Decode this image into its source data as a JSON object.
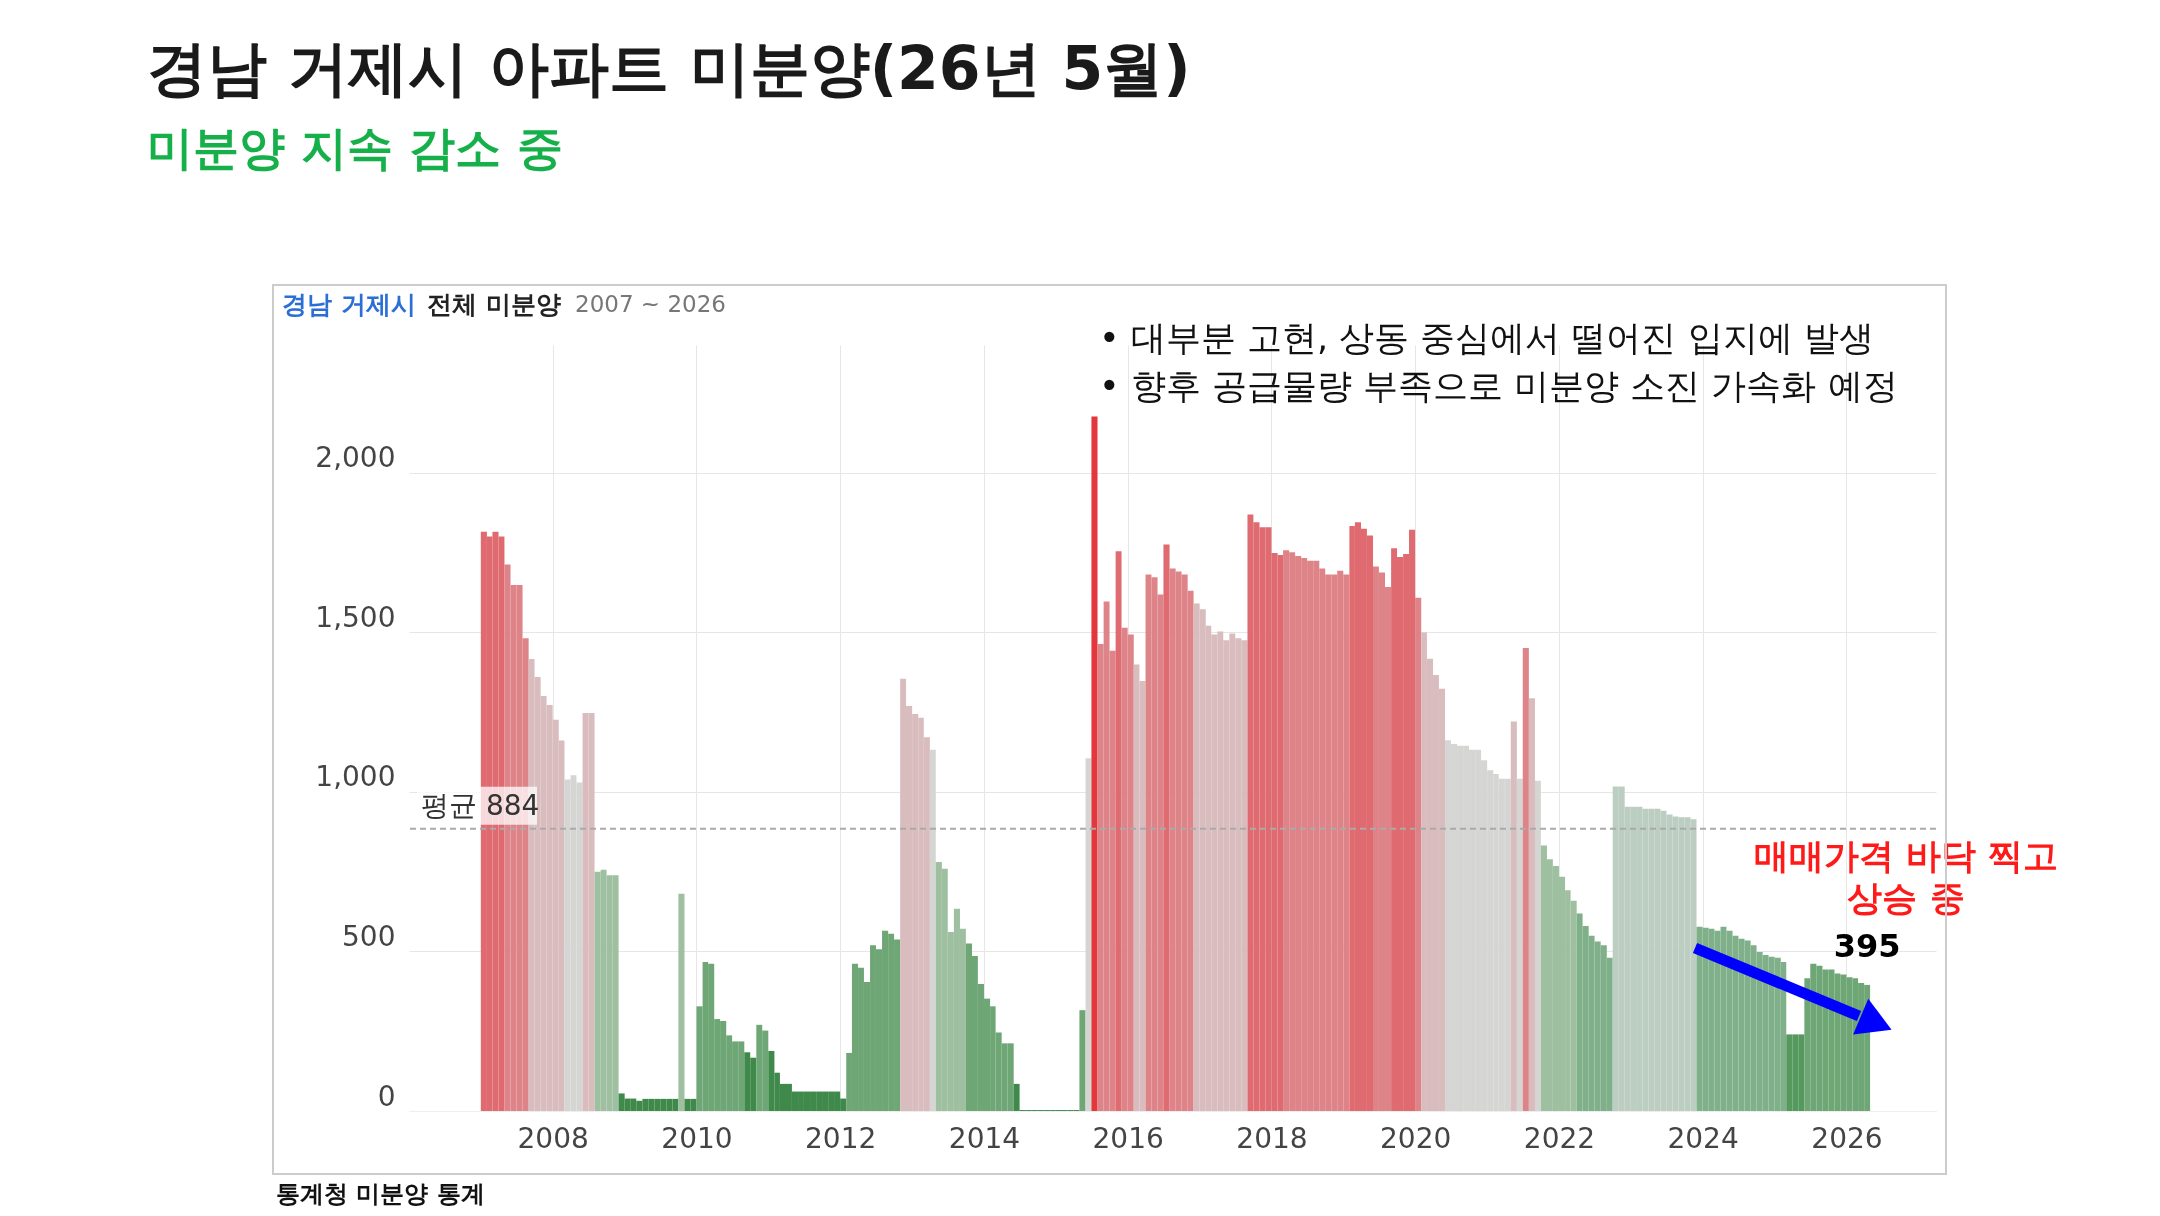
{
  "chart_data": {
    "type": "bar",
    "title": "경남 거제시 아파트 미분양(26년 5월)",
    "subtitle": "미분양 지속 감소 중",
    "x": [
      "2007-01",
      "2007-02",
      "2007-03",
      "2007-04",
      "2007-05",
      "2007-06",
      "2007-07",
      "2007-08",
      "2007-09",
      "2007-10",
      "2007-11",
      "2007-12",
      "2008-01",
      "2008-02",
      "2008-03",
      "2008-04",
      "2008-05",
      "2008-06",
      "2008-07",
      "2008-08",
      "2008-09",
      "2008-10",
      "2008-11",
      "2008-12",
      "2009-01",
      "2009-02",
      "2009-03",
      "2009-04",
      "2009-05",
      "2009-06",
      "2009-07",
      "2009-08",
      "2009-09",
      "2009-10",
      "2009-11",
      "2009-12",
      "2010-01",
      "2010-02",
      "2010-03",
      "2010-04",
      "2010-05",
      "2010-06",
      "2010-07",
      "2010-08",
      "2010-09",
      "2010-10",
      "2010-11",
      "2010-12",
      "2011-01",
      "2011-02",
      "2011-03",
      "2011-04",
      "2011-05",
      "2011-06",
      "2011-07",
      "2011-08",
      "2011-09",
      "2011-10",
      "2011-11",
      "2011-12",
      "2012-01",
      "2012-02",
      "2012-03",
      "2012-04",
      "2012-05",
      "2012-06",
      "2012-07",
      "2012-08",
      "2012-09",
      "2012-10",
      "2012-11",
      "2012-12",
      "2013-01",
      "2013-02",
      "2013-03",
      "2013-04",
      "2013-05",
      "2013-06",
      "2013-07",
      "2013-08",
      "2013-09",
      "2013-10",
      "2013-11",
      "2013-12",
      "2014-01",
      "2014-02",
      "2014-03",
      "2014-04",
      "2014-05",
      "2014-06",
      "2014-07",
      "2014-08",
      "2014-09",
      "2014-10",
      "2014-11",
      "2014-12",
      "2015-01",
      "2015-02",
      "2015-03",
      "2015-04",
      "2015-05",
      "2015-06",
      "2015-07",
      "2015-08",
      "2015-09",
      "2015-10",
      "2015-11",
      "2015-12",
      "2016-01",
      "2016-02",
      "2016-03",
      "2016-04",
      "2016-05",
      "2016-06",
      "2016-07",
      "2016-08",
      "2016-09",
      "2016-10",
      "2016-11",
      "2016-12",
      "2017-01",
      "2017-02",
      "2017-03",
      "2017-04",
      "2017-05",
      "2017-06",
      "2017-07",
      "2017-08",
      "2017-09",
      "2017-10",
      "2017-11",
      "2017-12",
      "2018-01",
      "2018-02",
      "2018-03",
      "2018-04",
      "2018-05",
      "2018-06",
      "2018-07",
      "2018-08",
      "2018-09",
      "2018-10",
      "2018-11",
      "2018-12",
      "2019-01",
      "2019-02",
      "2019-03",
      "2019-04",
      "2019-05",
      "2019-06",
      "2019-07",
      "2019-08",
      "2019-09",
      "2019-10",
      "2019-11",
      "2019-12",
      "2020-01",
      "2020-02",
      "2020-03",
      "2020-04",
      "2020-05",
      "2020-06",
      "2020-07",
      "2020-08",
      "2020-09",
      "2020-10",
      "2020-11",
      "2020-12",
      "2021-01",
      "2021-02",
      "2021-03",
      "2021-04",
      "2021-05",
      "2021-06",
      "2021-07",
      "2021-08",
      "2021-09",
      "2021-10",
      "2021-11",
      "2021-12",
      "2022-01",
      "2022-02",
      "2022-03",
      "2022-04",
      "2022-05",
      "2022-06",
      "2022-07",
      "2022-08",
      "2022-09",
      "2022-10",
      "2022-11",
      "2022-12",
      "2023-01",
      "2023-02",
      "2023-03",
      "2023-04",
      "2023-05",
      "2023-06",
      "2023-07",
      "2023-08",
      "2023-09",
      "2023-10",
      "2023-11",
      "2023-12",
      "2024-01",
      "2024-02",
      "2024-03",
      "2024-04",
      "2024-05",
      "2024-06",
      "2024-07",
      "2024-08",
      "2024-09",
      "2024-10",
      "2024-11",
      "2024-12",
      "2025-01",
      "2025-02",
      "2025-03",
      "2025-04",
      "2025-05",
      "2025-06",
      "2025-07",
      "2025-08",
      "2025-09",
      "2025-10",
      "2025-11",
      "2025-12",
      "2026-01",
      "2026-02",
      "2026-03",
      "2026-04"
    ],
    "values": [
      1815,
      1800,
      1815,
      1800,
      1712,
      1648,
      1648,
      1481,
      1416,
      1360,
      1300,
      1272,
      1226,
      1161,
      1039,
      1052,
      1029,
      1247,
      1247,
      750,
      756,
      739,
      739,
      55,
      39,
      39,
      32,
      38,
      38,
      38,
      38,
      38,
      38,
      681,
      38,
      38,
      328,
      467,
      461,
      288,
      282,
      237,
      218,
      218,
      184,
      167,
      270,
      252,
      188,
      120,
      85,
      85,
      61,
      61,
      61,
      61,
      61,
      61,
      61,
      61,
      39,
      182,
      461,
      449,
      404,
      519,
      507,
      565,
      555,
      537,
      1354,
      1269,
      1244,
      1232,
      1171,
      1132,
      780,
      759,
      561,
      634,
      571,
      525,
      486,
      398,
      352,
      328,
      246,
      212,
      212,
      85,
      3,
      3,
      3,
      3,
      3,
      3,
      3,
      3,
      3,
      3,
      316,
      1105,
      2176,
      1463,
      1596,
      1442,
      1754,
      1514,
      1493,
      1399,
      1347,
      1681,
      1672,
      1618,
      1775,
      1700,
      1690,
      1681,
      1630,
      1590,
      1572,
      1520,
      1493,
      1502,
      1475,
      1496,
      1481,
      1475,
      1869,
      1845,
      1829,
      1829,
      1748,
      1742,
      1757,
      1751,
      1739,
      1733,
      1724,
      1724,
      1700,
      1681,
      1681,
      1693,
      1681,
      1833,
      1845,
      1824,
      1803,
      1706,
      1687,
      1642,
      1763,
      1736,
      1745,
      1821,
      1608,
      1499,
      1417,
      1366,
      1323,
      1162,
      1150,
      1144,
      1144,
      1132,
      1132,
      1099,
      1068,
      1056,
      1041,
      1041,
      1220,
      1041,
      1451,
      1293,
      1035,
      832,
      789,
      768,
      734,
      692,
      659,
      619,
      580,
      549,
      531,
      519,
      480,
      1017,
      1017,
      953,
      953,
      953,
      947,
      947,
      947,
      941,
      929,
      923,
      920,
      920,
      914,
      577,
      574,
      571,
      565,
      577,
      565,
      549,
      540,
      534,
      519,
      498,
      489,
      483,
      480,
      467,
      240,
      240,
      240,
      416,
      461,
      455,
      443,
      443,
      431,
      428,
      419,
      416,
      401,
      395
    ],
    "colors": [
      "#df6a6f",
      "#df6a6f",
      "#df6a6f",
      "#df6a6f",
      "#de8387",
      "#de8387",
      "#de8387",
      "#de8387",
      "#d8bcbe",
      "#d8bcbe",
      "#d8bcbe",
      "#d8bcbe",
      "#d8bcbe",
      "#d8bcbe",
      "#d5d5d3",
      "#d5d5d3",
      "#d5d5d3",
      "#d8bcbe",
      "#d8bcbe",
      "#9ec0a1",
      "#9ec0a1",
      "#9ec0a1",
      "#9ec0a1",
      "#3f8a4b",
      "#3f8a4b",
      "#3f8a4b",
      "#3f8a4b",
      "#3f8a4b",
      "#3f8a4b",
      "#3f8a4b",
      "#3f8a4b",
      "#3f8a4b",
      "#3f8a4b",
      "#9ec0a1",
      "#3f8a4b",
      "#3f8a4b",
      "#6ea676",
      "#6ea676",
      "#6ea676",
      "#6ea676",
      "#6ea676",
      "#6ea676",
      "#6ea676",
      "#6ea676",
      "#3f8a4b",
      "#3f8a4b",
      "#6ea676",
      "#6ea676",
      "#3f8a4b",
      "#3f8a4b",
      "#3f8a4b",
      "#3f8a4b",
      "#3f8a4b",
      "#3f8a4b",
      "#3f8a4b",
      "#3f8a4b",
      "#3f8a4b",
      "#3f8a4b",
      "#3f8a4b",
      "#3f8a4b",
      "#3f8a4b",
      "#6ea676",
      "#6ea676",
      "#6ea676",
      "#6ea676",
      "#6ea676",
      "#6ea676",
      "#6ea676",
      "#6ea676",
      "#6ea676",
      "#d8bcbe",
      "#d8bcbe",
      "#d8bcbe",
      "#d8bcbe",
      "#d8bcbe",
      "#d5d5d3",
      "#9ec0a1",
      "#9ec0a1",
      "#9ec0a1",
      "#9ec0a1",
      "#9ec0a1",
      "#6ea676",
      "#6ea676",
      "#6ea676",
      "#6ea676",
      "#6ea676",
      "#6ea676",
      "#6ea676",
      "#6ea676",
      "#3f8a4b",
      "#3f8a4b",
      "#3f8a4b",
      "#3f8a4b",
      "#3f8a4b",
      "#3f8a4b",
      "#3f8a4b",
      "#3f8a4b",
      "#3f8a4b",
      "#3f8a4b",
      "#3f8a4b",
      "#6ea676",
      "#d5d5d3",
      "#e3363d",
      "#de8387",
      "#de8387",
      "#de8387",
      "#df6a6f",
      "#de8387",
      "#de8387",
      "#d8bcbe",
      "#d8bcbe",
      "#de8387",
      "#de8387",
      "#de8387",
      "#df6a6f",
      "#de8387",
      "#de8387",
      "#de8387",
      "#de8387",
      "#d8bcbe",
      "#d8bcbe",
      "#d8bcbe",
      "#d8bcbe",
      "#d8bcbe",
      "#d8bcbe",
      "#d8bcbe",
      "#d8bcbe",
      "#d8bcbe",
      "#df6a6f",
      "#df6a6f",
      "#df6a6f",
      "#df6a6f",
      "#df6a6f",
      "#df6a6f",
      "#de8387",
      "#de8387",
      "#de8387",
      "#de8387",
      "#de8387",
      "#de8387",
      "#de8387",
      "#de8387",
      "#de8387",
      "#de8387",
      "#de8387",
      "#df6a6f",
      "#df6a6f",
      "#df6a6f",
      "#df6a6f",
      "#de8387",
      "#de8387",
      "#de8387",
      "#df6a6f",
      "#df6a6f",
      "#df6a6f",
      "#df6a6f",
      "#de8387",
      "#d8bcbe",
      "#d8bcbe",
      "#d8bcbe",
      "#d8bcbe",
      "#d5d5d3",
      "#d5d5d3",
      "#d5d5d3",
      "#d5d5d3",
      "#d5d5d3",
      "#d5d5d3",
      "#d5d5d3",
      "#d5d5d3",
      "#d5d5d3",
      "#d5d5d3",
      "#d5d5d3",
      "#d8bcbe",
      "#d5d5d3",
      "#de8387",
      "#d8bcbe",
      "#d5d5d3",
      "#9ec0a1",
      "#9ec0a1",
      "#9ec0a1",
      "#9ec0a1",
      "#9ec0a1",
      "#9ec0a1",
      "#7fb08a",
      "#7fb08a",
      "#7fb08a",
      "#7fb08a",
      "#7fb08a",
      "#7fb08a",
      "#bccdc1",
      "#bccdc1",
      "#bccdc1",
      "#bccdc1",
      "#bccdc1",
      "#bccdc1",
      "#bccdc1",
      "#bccdc1",
      "#bccdc1",
      "#bccdc1",
      "#bccdc1",
      "#bccdc1",
      "#bccdc1",
      "#bccdc1",
      "#7fb08a",
      "#7fb08a",
      "#7fb08a",
      "#7fb08a",
      "#7fb08a",
      "#7fb08a",
      "#7fb08a",
      "#7fb08a",
      "#7fb08a",
      "#7fb08a",
      "#7fb08a",
      "#7fb08a",
      "#7fb08a",
      "#7fb08a",
      "#7fb08a",
      "#56995f",
      "#56995f",
      "#56995f",
      "#6ea676",
      "#6ea676",
      "#6ea676",
      "#6ea676",
      "#6ea676",
      "#6ea676",
      "#6ea676",
      "#6ea676",
      "#6ea676",
      "#6ea676",
      "#6ea676"
    ],
    "xlim": [
      "2006-01",
      "2027-04"
    ],
    "xticks": [
      "2008",
      "2010",
      "2012",
      "2014",
      "2016",
      "2018",
      "2020",
      "2022",
      "2024",
      "2026"
    ],
    "ylim": [
      0,
      2400
    ],
    "yticks": [
      0,
      500,
      {
        "value": 1000,
        "label": "1,000"
      },
      {
        "value": 1500,
        "label": "1,500"
      },
      {
        "value": 2000,
        "label": "2,000"
      }
    ],
    "grid": true,
    "ref_lines": [
      {
        "axis": "y",
        "value": 884,
        "label": "평균 884",
        "color": "#aaaaaa",
        "line_style": "dashed"
      }
    ],
    "annotations": [
      "경남 거제시",
      "전체 미분양",
      "2007 ~ 2026",
      "• 대부분 고현, 상동 중심에서 떨어진 입지에 발생",
      "• 향후 공급물량 부족으로 미분양 소진 가속화 예정",
      "매매가격 바닥 찍고\n상승 중",
      {
        "text": "395",
        "x": "2026-04",
        "y": 395
      },
      "통계청 미분양 통계"
    ]
  }
}
